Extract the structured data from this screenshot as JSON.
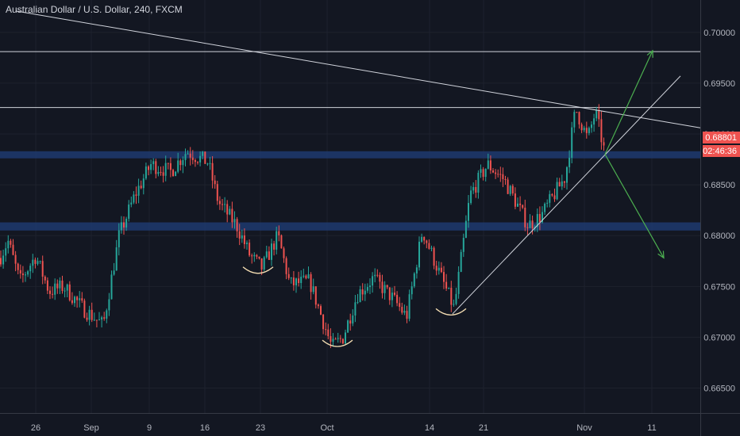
{
  "window": {
    "title": "Australian Dollar / U.S. Dollar, 240, FXCM"
  },
  "price_badge": {
    "price": "0.68801",
    "countdown": "02:46:36",
    "color": "#ef5350"
  },
  "colors": {
    "background": "#131722",
    "grid": "#1e222d",
    "axis_line": "#363a45",
    "up_candle": "#26a69a",
    "down_candle": "#ef5350",
    "zone": "#1e3a6e",
    "trend_line": "#d1d4dc",
    "arrow": "#4caf50",
    "pattern_arc": "#f5deb3"
  },
  "chart_data": {
    "type": "candlestick",
    "title": "Australian Dollar / U.S. Dollar, 240, FXCM",
    "ylim": [
      0.662,
      0.7024
    ],
    "y_ticks": [
      "0.70000",
      "0.69500",
      "0.69000",
      "0.68500",
      "0.68000",
      "0.67500",
      "0.67000",
      "0.66500"
    ],
    "x_ticks": [
      "26",
      "Sep",
      "9",
      "16",
      "23",
      "Oct",
      "14",
      "21",
      "Nov",
      "11"
    ],
    "grid": true,
    "price_scale_position": "right",
    "path_points": [
      [
        0,
        0.6778
      ],
      [
        10,
        0.6795
      ],
      [
        25,
        0.6755
      ],
      [
        45,
        0.678
      ],
      [
        62,
        0.6745
      ],
      [
        80,
        0.675
      ],
      [
        105,
        0.6728
      ],
      [
        130,
        0.6712
      ],
      [
        150,
        0.68
      ],
      [
        170,
        0.684
      ],
      [
        190,
        0.687
      ],
      [
        215,
        0.6863
      ],
      [
        235,
        0.6883
      ],
      [
        262,
        0.6872
      ],
      [
        275,
        0.6833
      ],
      [
        298,
        0.681
      ],
      [
        315,
        0.678
      ],
      [
        330,
        0.6768
      ],
      [
        350,
        0.68
      ],
      [
        365,
        0.6752
      ],
      [
        390,
        0.6755
      ],
      [
        418,
        0.669
      ],
      [
        432,
        0.67
      ],
      [
        450,
        0.6742
      ],
      [
        470,
        0.6758
      ],
      [
        495,
        0.6738
      ],
      [
        512,
        0.672
      ],
      [
        532,
        0.6805
      ],
      [
        555,
        0.676
      ],
      [
        572,
        0.6728
      ],
      [
        592,
        0.684
      ],
      [
        614,
        0.687
      ],
      [
        635,
        0.6855
      ],
      [
        665,
        0.681
      ],
      [
        682,
        0.682
      ],
      [
        712,
        0.6858
      ],
      [
        725,
        0.6925
      ],
      [
        740,
        0.6895
      ],
      [
        750,
        0.6922
      ],
      [
        762,
        0.688
      ]
    ],
    "horizontal_lines": [
      0.6981,
      0.6926
    ],
    "zones": [
      {
        "from": 0.6876,
        "to": 0.6883
      },
      {
        "from": 0.6805,
        "to": 0.6813
      }
    ],
    "lines": [
      {
        "from": [
          20,
          0.7021
        ],
        "to": [
          882,
          0.6906
        ]
      },
      {
        "from": [
          570,
          0.6723
        ],
        "to": [
          857,
          0.6957
        ]
      }
    ],
    "arrows": [
      {
        "from": [
          762,
          0.688
        ],
        "to": [
          822,
          0.6982
        ]
      },
      {
        "from": [
          762,
          0.688
        ],
        "to": [
          836,
          0.6778
        ]
      }
    ],
    "pattern_arcs": [
      {
        "center": [
          325,
          0.6766
        ]
      },
      {
        "center": [
          425,
          0.6694
        ]
      },
      {
        "center": [
          568,
          0.6725
        ]
      }
    ]
  }
}
